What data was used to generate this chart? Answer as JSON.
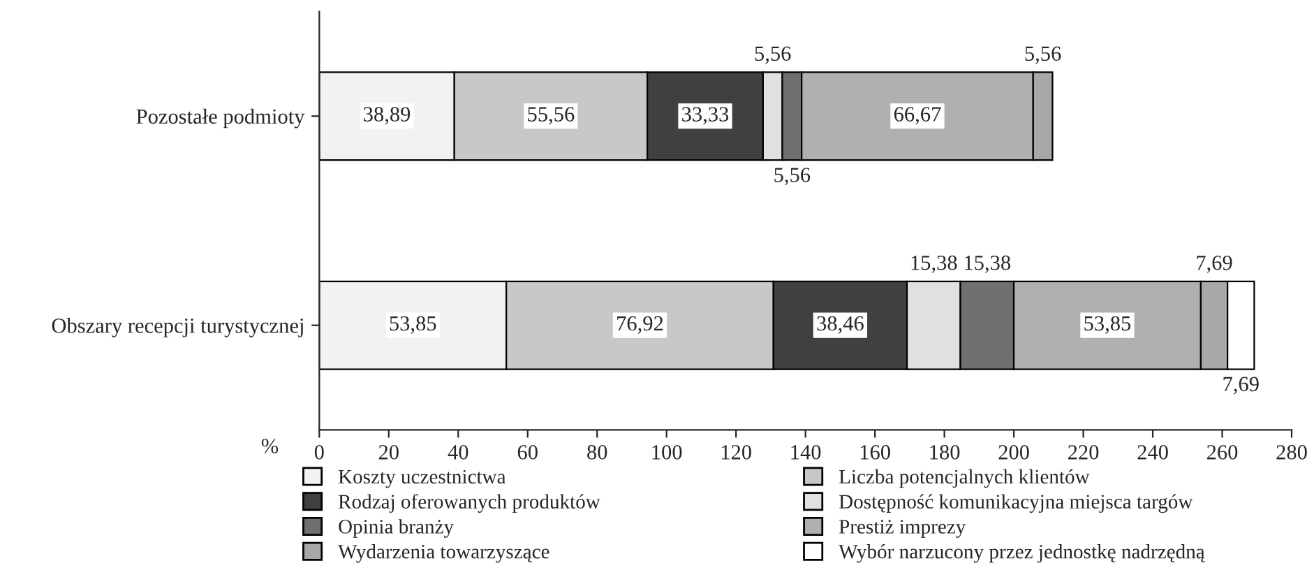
{
  "chart_data": {
    "type": "bar",
    "orientation": "horizontal",
    "stacked": true,
    "xlabel": "%",
    "categories": [
      "Pozostałe podmioty",
      "Obszary recepcji turystycznej"
    ],
    "xlim": [
      0,
      280
    ],
    "xticks": [
      0,
      20,
      40,
      60,
      80,
      100,
      120,
      140,
      160,
      180,
      200,
      220,
      240,
      260,
      280
    ],
    "grid": false,
    "legend": "bottom",
    "series": [
      {
        "name": "Koszty uczestnictwa",
        "color": "#f2f2f2",
        "values": [
          38.89,
          53.85
        ],
        "value_labels": [
          "38,89",
          "53,85"
        ]
      },
      {
        "name": "Liczba potencjalnych klientów",
        "color": "#c8c8c8",
        "values": [
          55.56,
          76.92
        ],
        "value_labels": [
          "55,56",
          "76,92"
        ]
      },
      {
        "name": "Rodzaj oferowanych produktów",
        "color": "#404040",
        "values": [
          33.33,
          38.46
        ],
        "value_labels": [
          "33,33",
          "38,46"
        ]
      },
      {
        "name": "Dostępność komunikacyjna miejsca targów",
        "color": "#e0e0e0",
        "values": [
          5.56,
          15.38
        ],
        "value_labels": [
          "5,56",
          "15,38"
        ]
      },
      {
        "name": "Opinia branży",
        "color": "#707070",
        "values": [
          5.56,
          15.38
        ],
        "value_labels": [
          "5,56",
          "15,38"
        ]
      },
      {
        "name": "Prestiż imprezy",
        "color": "#b0b0b0",
        "values": [
          66.67,
          53.85
        ],
        "value_labels": [
          "66,67",
          "53,85"
        ]
      },
      {
        "name": "Wydarzenia towarzyszące",
        "color": "#a8a8a8",
        "values": [
          5.56,
          7.69
        ],
        "value_labels": [
          "5,56",
          "7,69"
        ]
      },
      {
        "name": "Wybór narzucony przez jednostkę nadrzędną",
        "color": "#ffffff",
        "values": [
          null,
          7.69
        ],
        "value_labels": [
          null,
          "7,69"
        ]
      }
    ]
  }
}
